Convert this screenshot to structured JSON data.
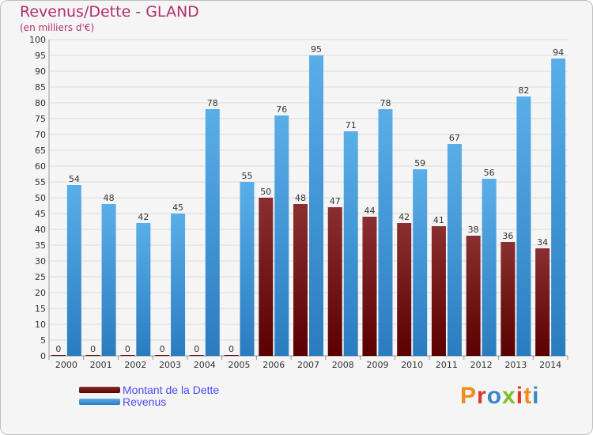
{
  "chart_data": {
    "type": "bar",
    "title": "Revenus/Dette - GLAND",
    "subtitle": "(en milliers d'€)",
    "categories": [
      "2000",
      "2001",
      "2002",
      "2003",
      "2004",
      "2005",
      "2006",
      "2007",
      "2008",
      "2009",
      "2010",
      "2011",
      "2012",
      "2013",
      "2014"
    ],
    "series": [
      {
        "name": "Montant de la Dette",
        "color": "#7a1010",
        "values": [
          0,
          0,
          0,
          0,
          0,
          0,
          50,
          48,
          47,
          44,
          42,
          41,
          38,
          36,
          34
        ]
      },
      {
        "name": "Revenus",
        "color": "#4aa3e8",
        "values": [
          54,
          48,
          42,
          45,
          78,
          55,
          76,
          95,
          71,
          78,
          59,
          67,
          56,
          82,
          94
        ]
      }
    ],
    "ylim": [
      0,
      100
    ],
    "ytick_step": 5,
    "grid": true,
    "legend_position": "bottom-left"
  },
  "brand": {
    "logo_text": "Proxiti",
    "colors": [
      "#f28c1e",
      "#e0342c",
      "#3d86c6",
      "#7cbf2a",
      "#e0342c",
      "#f28c1e",
      "#3d86c6"
    ]
  }
}
